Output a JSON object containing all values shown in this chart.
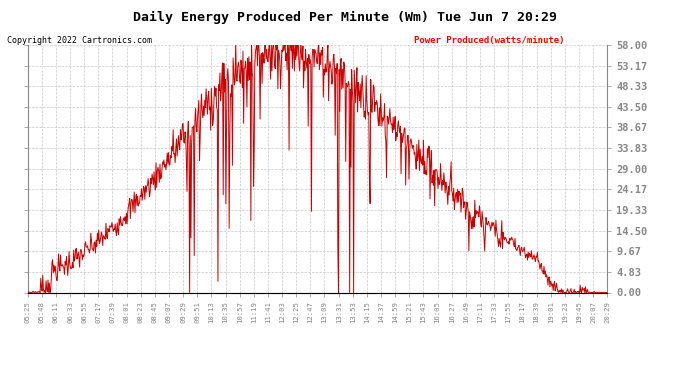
{
  "title": "Daily Energy Produced Per Minute (Wm) Tue Jun 7 20:29",
  "copyright": "Copyright 2022 Cartronics.com",
  "legend_label": "Power Produced(watts/minute)",
  "ylabel_right_values": [
    0.0,
    4.83,
    9.67,
    14.5,
    19.33,
    24.17,
    29.0,
    33.83,
    38.67,
    43.5,
    48.33,
    53.17,
    58.0
  ],
  "ymax": 58.0,
  "ymin": 0.0,
  "bg_color": "#ffffff",
  "grid_color": "#c8c8c8",
  "line_color": "#cc0000",
  "title_color": "#000000",
  "copyright_color": "#000000",
  "legend_color": "#ff0000",
  "x_tick_labels": [
    "05:25",
    "05:48",
    "06:11",
    "06:33",
    "06:55",
    "07:17",
    "07:39",
    "08:01",
    "08:23",
    "08:45",
    "09:07",
    "09:29",
    "09:51",
    "10:13",
    "10:35",
    "10:57",
    "11:19",
    "11:41",
    "12:03",
    "12:25",
    "12:47",
    "13:09",
    "13:31",
    "13:53",
    "14:15",
    "14:37",
    "14:59",
    "15:21",
    "15:43",
    "16:05",
    "16:27",
    "16:49",
    "17:11",
    "17:33",
    "17:55",
    "18:17",
    "18:39",
    "19:01",
    "19:23",
    "19:45",
    "20:07",
    "20:29"
  ],
  "figwidth": 6.9,
  "figheight": 3.75,
  "dpi": 100
}
